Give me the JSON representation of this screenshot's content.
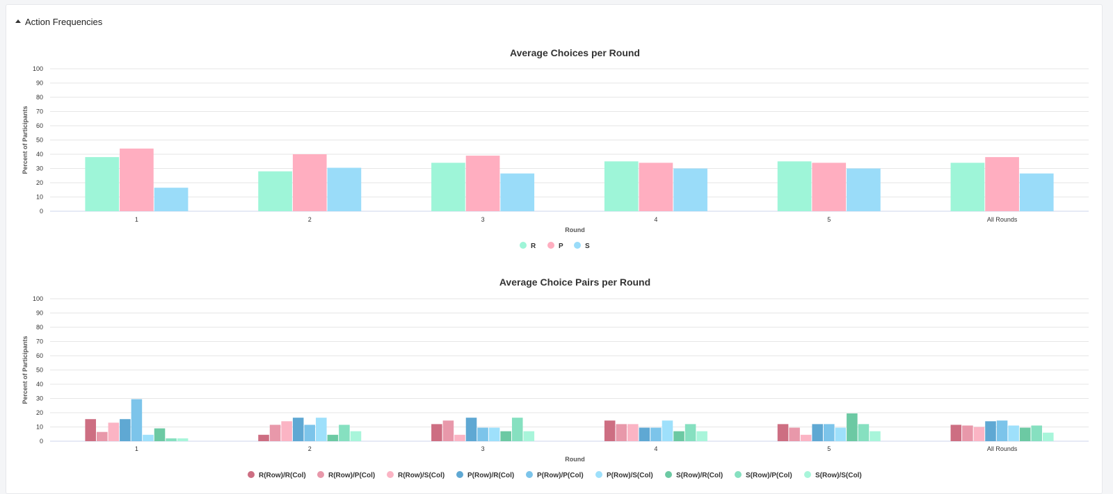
{
  "section": {
    "title": "Action Frequencies",
    "icon": "caret-up-icon"
  },
  "chart_data": [
    {
      "type": "bar",
      "title": "Average Choices per Round",
      "xlabel": "Round",
      "ylabel": "Percent of Participants",
      "ylim": [
        0,
        100
      ],
      "yticks": [
        0,
        10,
        20,
        30,
        40,
        50,
        60,
        70,
        80,
        90,
        100
      ],
      "grid": true,
      "legend": "bottom-center",
      "categories": [
        "1",
        "2",
        "3",
        "4",
        "5",
        "All Rounds"
      ],
      "series": [
        {
          "name": "R",
          "color": "#9ef5d8",
          "values": [
            38,
            28,
            34,
            35,
            35,
            34
          ]
        },
        {
          "name": "P",
          "color": "#ffaec0",
          "values": [
            44,
            40,
            39,
            34,
            34,
            38
          ]
        },
        {
          "name": "S",
          "color": "#9adcf9",
          "values": [
            16.5,
            30.5,
            26.5,
            30,
            30,
            26.5
          ]
        }
      ]
    },
    {
      "type": "bar",
      "title": "Average Choice Pairs per Round",
      "xlabel": "Round",
      "ylabel": "Percent of Participants",
      "ylim": [
        0,
        100
      ],
      "yticks": [
        0,
        10,
        20,
        30,
        40,
        50,
        60,
        70,
        80,
        90,
        100
      ],
      "grid": true,
      "legend": "bottom-center",
      "categories": [
        "1",
        "2",
        "3",
        "4",
        "5",
        "All Rounds"
      ],
      "series": [
        {
          "name": "R(Row)/R(Col)",
          "color": "#cd6e82",
          "values": [
            15.5,
            4.5,
            12,
            14.5,
            12,
            11.5
          ]
        },
        {
          "name": "R(Row)/P(Col)",
          "color": "#e898aa",
          "values": [
            6.5,
            11.5,
            14.5,
            12,
            9.5,
            11
          ]
        },
        {
          "name": "R(Row)/S(Col)",
          "color": "#fbb4c4",
          "values": [
            13,
            14,
            4.5,
            12,
            4.5,
            10
          ]
        },
        {
          "name": "P(Row)/R(Col)",
          "color": "#5fa8d3",
          "values": [
            15.5,
            16.5,
            16.5,
            9.5,
            12,
            14
          ]
        },
        {
          "name": "P(Row)/P(Col)",
          "color": "#7cc4ea",
          "values": [
            29.5,
            11.5,
            9.5,
            9.5,
            12,
            14.5
          ]
        },
        {
          "name": "P(Row)/S(Col)",
          "color": "#9ee0fb",
          "values": [
            4.5,
            16.5,
            9.5,
            14.5,
            9.5,
            11
          ]
        },
        {
          "name": "S(Row)/R(Col)",
          "color": "#6cc9a3",
          "values": [
            9,
            4.5,
            7,
            7,
            19.5,
            9.5
          ]
        },
        {
          "name": "S(Row)/P(Col)",
          "color": "#86e0c0",
          "values": [
            2,
            11.5,
            16.5,
            12,
            12,
            11
          ]
        },
        {
          "name": "S(Row)/S(Col)",
          "color": "#a8f5da",
          "values": [
            2,
            7,
            7,
            7,
            7,
            6
          ]
        }
      ]
    }
  ]
}
